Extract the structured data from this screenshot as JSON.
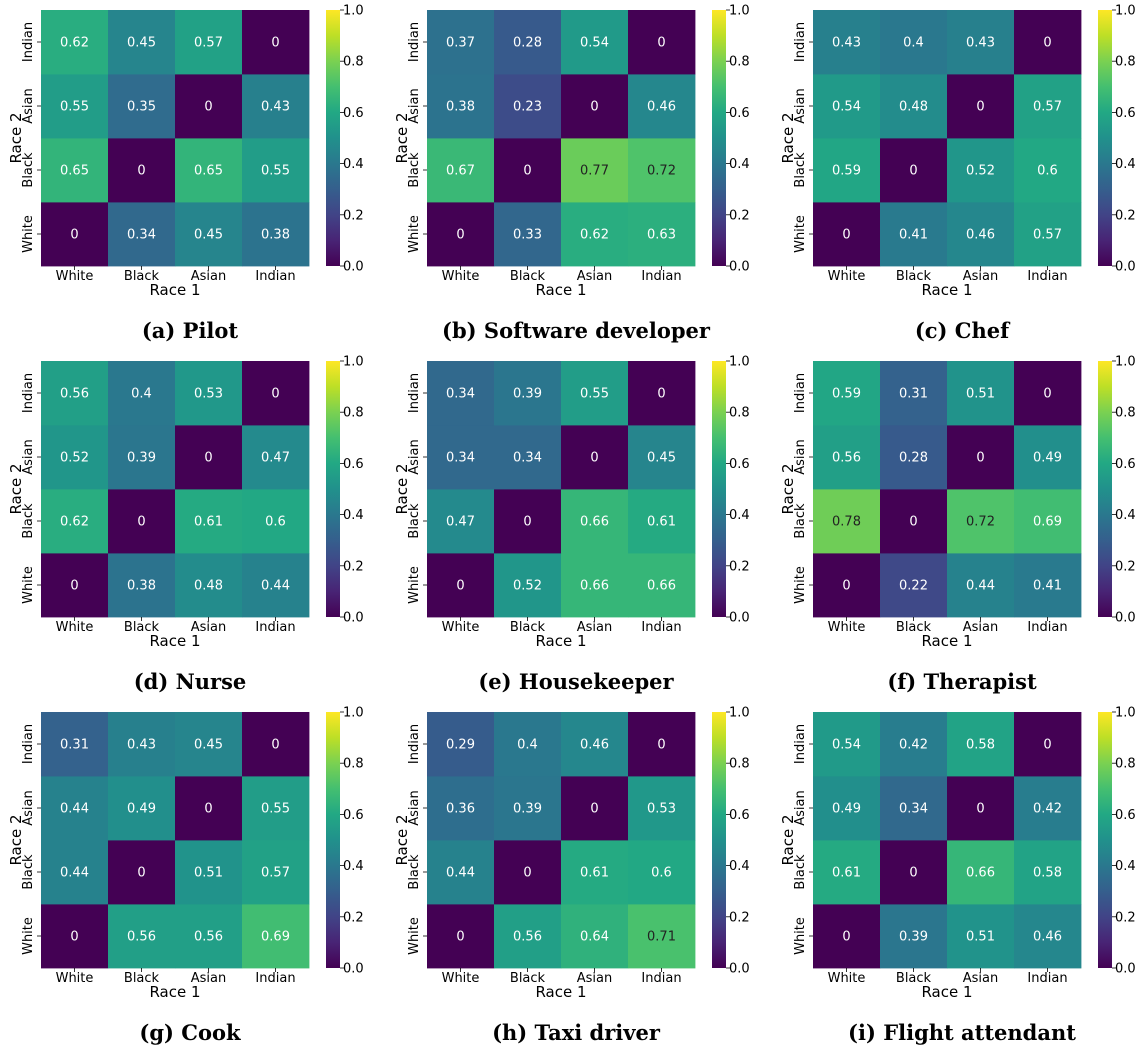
{
  "figure": {
    "x_tick_labels": [
      "White",
      "Black",
      "Asian",
      "Indian"
    ],
    "y_tick_labels": [
      "White",
      "Black",
      "Asian",
      "Indian"
    ],
    "xlabel": "Race 1",
    "ylabel": "Race 2",
    "colorbar_ticks": [
      "0.0",
      "0.2",
      "0.4",
      "0.6",
      "0.8",
      "1.0"
    ],
    "colormap": "viridis"
  },
  "panels": [
    {
      "caption": "(a) Pilot"
    },
    {
      "caption": "(b) Software developer"
    },
    {
      "caption": "(c) Chef"
    },
    {
      "caption": "(d) Nurse"
    },
    {
      "caption": "(e) Housekeeper"
    },
    {
      "caption": "(f) Therapist"
    },
    {
      "caption": "(g) Cook"
    },
    {
      "caption": "(h) Taxi driver"
    },
    {
      "caption": "(i) Flight attendant"
    }
  ],
  "chart_data": [
    {
      "type": "heatmap",
      "title": "(a) Pilot",
      "x": [
        "White",
        "Black",
        "Asian",
        "Indian"
      ],
      "y": [
        "White",
        "Black",
        "Asian",
        "Indian"
      ],
      "values": [
        [
          0,
          0.34,
          0.45,
          0.38
        ],
        [
          0.65,
          0,
          0.65,
          0.55
        ],
        [
          0.55,
          0.35,
          0,
          0.43
        ],
        [
          0.62,
          0.45,
          0.57,
          0
        ]
      ],
      "xlabel": "Race 1",
      "ylabel": "Race 2",
      "vmin": 0,
      "vmax": 1
    },
    {
      "type": "heatmap",
      "title": "(b) Software developer",
      "x": [
        "White",
        "Black",
        "Asian",
        "Indian"
      ],
      "y": [
        "White",
        "Black",
        "Asian",
        "Indian"
      ],
      "values": [
        [
          0,
          0.33,
          0.62,
          0.63
        ],
        [
          0.67,
          0,
          0.77,
          0.72
        ],
        [
          0.38,
          0.23,
          0,
          0.46
        ],
        [
          0.37,
          0.28,
          0.54,
          0
        ]
      ],
      "xlabel": "Race 1",
      "ylabel": "Race 2",
      "vmin": 0,
      "vmax": 1
    },
    {
      "type": "heatmap",
      "title": "(c) Chef",
      "x": [
        "White",
        "Black",
        "Asian",
        "Indian"
      ],
      "y": [
        "White",
        "Black",
        "Asian",
        "Indian"
      ],
      "values": [
        [
          0,
          0.41,
          0.46,
          0.57
        ],
        [
          0.59,
          0,
          0.52,
          0.6
        ],
        [
          0.54,
          0.48,
          0,
          0.57
        ],
        [
          0.43,
          0.4,
          0.43,
          0
        ]
      ],
      "xlabel": "Race 1",
      "ylabel": "Race 2",
      "vmin": 0,
      "vmax": 1
    },
    {
      "type": "heatmap",
      "title": "(d) Nurse",
      "x": [
        "White",
        "Black",
        "Asian",
        "Indian"
      ],
      "y": [
        "White",
        "Black",
        "Asian",
        "Indian"
      ],
      "values": [
        [
          0,
          0.38,
          0.48,
          0.44
        ],
        [
          0.62,
          0,
          0.61,
          0.6
        ],
        [
          0.52,
          0.39,
          0,
          0.47
        ],
        [
          0.56,
          0.4,
          0.53,
          0
        ]
      ],
      "xlabel": "Race 1",
      "ylabel": "Race 2",
      "vmin": 0,
      "vmax": 1
    },
    {
      "type": "heatmap",
      "title": "(e) Housekeeper",
      "x": [
        "White",
        "Black",
        "Asian",
        "Indian"
      ],
      "y": [
        "White",
        "Black",
        "Asian",
        "Indian"
      ],
      "values": [
        [
          0,
          0.52,
          0.66,
          0.66
        ],
        [
          0.47,
          0,
          0.66,
          0.61
        ],
        [
          0.34,
          0.34,
          0,
          0.45
        ],
        [
          0.34,
          0.39,
          0.55,
          0
        ]
      ],
      "xlabel": "Race 1",
      "ylabel": "Race 2",
      "vmin": 0,
      "vmax": 1
    },
    {
      "type": "heatmap",
      "title": "(f) Therapist",
      "x": [
        "White",
        "Black",
        "Asian",
        "Indian"
      ],
      "y": [
        "White",
        "Black",
        "Asian",
        "Indian"
      ],
      "values": [
        [
          0,
          0.22,
          0.44,
          0.41
        ],
        [
          0.78,
          0,
          0.72,
          0.69
        ],
        [
          0.56,
          0.28,
          0,
          0.49
        ],
        [
          0.59,
          0.31,
          0.51,
          0
        ]
      ],
      "xlabel": "Race 1",
      "ylabel": "Race 2",
      "vmin": 0,
      "vmax": 1
    },
    {
      "type": "heatmap",
      "title": "(g) Cook",
      "x": [
        "White",
        "Black",
        "Asian",
        "Indian"
      ],
      "y": [
        "White",
        "Black",
        "Asian",
        "Indian"
      ],
      "values": [
        [
          0,
          0.56,
          0.56,
          0.69
        ],
        [
          0.44,
          0,
          0.51,
          0.57
        ],
        [
          0.44,
          0.49,
          0,
          0.55
        ],
        [
          0.31,
          0.43,
          0.45,
          0
        ]
      ],
      "xlabel": "Race 1",
      "ylabel": "Race 2",
      "vmin": 0,
      "vmax": 1
    },
    {
      "type": "heatmap",
      "title": "(h) Taxi driver",
      "x": [
        "White",
        "Black",
        "Asian",
        "Indian"
      ],
      "y": [
        "White",
        "Black",
        "Asian",
        "Indian"
      ],
      "values": [
        [
          0,
          0.56,
          0.64,
          0.71
        ],
        [
          0.44,
          0,
          0.61,
          0.6
        ],
        [
          0.36,
          0.39,
          0,
          0.53
        ],
        [
          0.29,
          0.4,
          0.46,
          0
        ]
      ],
      "xlabel": "Race 1",
      "ylabel": "Race 2",
      "vmin": 0,
      "vmax": 1
    },
    {
      "type": "heatmap",
      "title": "(i) Flight attendant",
      "x": [
        "White",
        "Black",
        "Asian",
        "Indian"
      ],
      "y": [
        "White",
        "Black",
        "Asian",
        "Indian"
      ],
      "values": [
        [
          0,
          0.39,
          0.51,
          0.46
        ],
        [
          0.61,
          0,
          0.66,
          0.58
        ],
        [
          0.49,
          0.34,
          0,
          0.42
        ],
        [
          0.54,
          0.42,
          0.58,
          0
        ]
      ],
      "xlabel": "Race 1",
      "ylabel": "Race 2",
      "vmin": 0,
      "vmax": 1
    }
  ]
}
